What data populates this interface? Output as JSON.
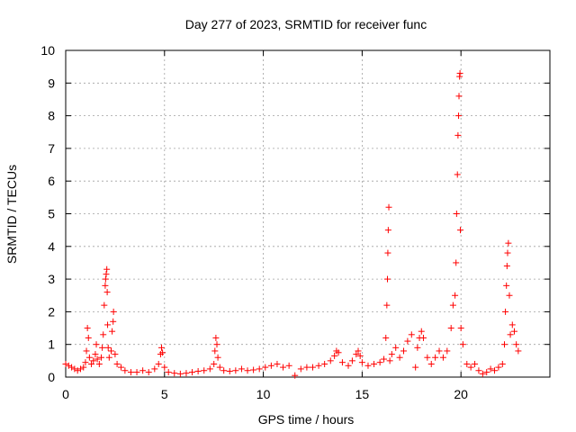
{
  "chart_data": {
    "type": "scatter",
    "title": "Day 277 of 2023, SRMTID for receiver func",
    "xlabel": "GPS time / hours",
    "ylabel": "SRMTID / TECUs",
    "xlim": [
      0,
      24.5
    ],
    "ylim": [
      0,
      10
    ],
    "xticks": [
      0,
      5,
      10,
      15,
      20
    ],
    "yticks": [
      0,
      1,
      2,
      3,
      4,
      5,
      6,
      7,
      8,
      9,
      10
    ],
    "grid": true,
    "marker": "+",
    "color": "#ff0000",
    "series": [
      {
        "name": "SRMTID",
        "points": [
          [
            0.0,
            0.4
          ],
          [
            0.15,
            0.35
          ],
          [
            0.3,
            0.3
          ],
          [
            0.45,
            0.25
          ],
          [
            0.6,
            0.2
          ],
          [
            0.75,
            0.25
          ],
          [
            0.9,
            0.3
          ],
          [
            1.0,
            0.45
          ],
          [
            1.05,
            0.8
          ],
          [
            1.1,
            1.5
          ],
          [
            1.15,
            1.2
          ],
          [
            1.2,
            0.6
          ],
          [
            1.3,
            0.4
          ],
          [
            1.4,
            0.5
          ],
          [
            1.5,
            0.7
          ],
          [
            1.55,
            1.0
          ],
          [
            1.6,
            0.55
          ],
          [
            1.7,
            0.4
          ],
          [
            1.8,
            0.6
          ],
          [
            1.85,
            0.9
          ],
          [
            1.9,
            1.3
          ],
          [
            1.95,
            2.2
          ],
          [
            2.0,
            2.8
          ],
          [
            2.02,
            3.0
          ],
          [
            2.05,
            3.15
          ],
          [
            2.08,
            3.3
          ],
          [
            2.1,
            2.6
          ],
          [
            2.12,
            1.6
          ],
          [
            2.15,
            0.9
          ],
          [
            2.2,
            0.6
          ],
          [
            2.3,
            0.8
          ],
          [
            2.35,
            1.4
          ],
          [
            2.4,
            1.7
          ],
          [
            2.42,
            2.0
          ],
          [
            2.5,
            0.7
          ],
          [
            2.6,
            0.4
          ],
          [
            2.8,
            0.3
          ],
          [
            3.0,
            0.2
          ],
          [
            3.3,
            0.15
          ],
          [
            3.6,
            0.15
          ],
          [
            3.9,
            0.2
          ],
          [
            4.2,
            0.15
          ],
          [
            4.5,
            0.25
          ],
          [
            4.7,
            0.4
          ],
          [
            4.8,
            0.7
          ],
          [
            4.85,
            0.9
          ],
          [
            4.9,
            0.75
          ],
          [
            5.0,
            0.3
          ],
          [
            5.2,
            0.15
          ],
          [
            5.5,
            0.12
          ],
          [
            5.8,
            0.1
          ],
          [
            6.1,
            0.12
          ],
          [
            6.4,
            0.15
          ],
          [
            6.7,
            0.18
          ],
          [
            7.0,
            0.2
          ],
          [
            7.3,
            0.25
          ],
          [
            7.5,
            0.4
          ],
          [
            7.55,
            0.8
          ],
          [
            7.6,
            1.2
          ],
          [
            7.65,
            1.0
          ],
          [
            7.7,
            0.6
          ],
          [
            7.8,
            0.3
          ],
          [
            8.0,
            0.2
          ],
          [
            8.3,
            0.18
          ],
          [
            8.6,
            0.2
          ],
          [
            8.9,
            0.25
          ],
          [
            9.2,
            0.2
          ],
          [
            9.5,
            0.22
          ],
          [
            9.8,
            0.25
          ],
          [
            10.1,
            0.3
          ],
          [
            10.4,
            0.35
          ],
          [
            10.7,
            0.4
          ],
          [
            11.0,
            0.3
          ],
          [
            11.3,
            0.35
          ],
          [
            11.6,
            0.05
          ],
          [
            11.9,
            0.25
          ],
          [
            12.2,
            0.3
          ],
          [
            12.5,
            0.3
          ],
          [
            12.8,
            0.35
          ],
          [
            13.1,
            0.4
          ],
          [
            13.4,
            0.5
          ],
          [
            13.6,
            0.65
          ],
          [
            13.7,
            0.8
          ],
          [
            13.8,
            0.75
          ],
          [
            14.0,
            0.45
          ],
          [
            14.3,
            0.35
          ],
          [
            14.5,
            0.5
          ],
          [
            14.7,
            0.7
          ],
          [
            14.8,
            0.8
          ],
          [
            14.9,
            0.65
          ],
          [
            15.0,
            0.45
          ],
          [
            15.3,
            0.35
          ],
          [
            15.6,
            0.4
          ],
          [
            15.9,
            0.45
          ],
          [
            16.1,
            0.55
          ],
          [
            16.2,
            1.2
          ],
          [
            16.25,
            2.2
          ],
          [
            16.28,
            3.0
          ],
          [
            16.3,
            3.8
          ],
          [
            16.32,
            4.5
          ],
          [
            16.35,
            5.2
          ],
          [
            16.4,
            0.5
          ],
          [
            16.5,
            0.7
          ],
          [
            16.7,
            0.9
          ],
          [
            16.9,
            0.6
          ],
          [
            17.1,
            0.8
          ],
          [
            17.3,
            1.1
          ],
          [
            17.5,
            1.3
          ],
          [
            17.7,
            0.3
          ],
          [
            17.8,
            0.9
          ],
          [
            17.9,
            1.2
          ],
          [
            18.0,
            1.4
          ],
          [
            18.1,
            1.2
          ],
          [
            18.3,
            0.6
          ],
          [
            18.5,
            0.4
          ],
          [
            18.7,
            0.6
          ],
          [
            18.9,
            0.8
          ],
          [
            19.1,
            0.6
          ],
          [
            19.3,
            0.8
          ],
          [
            19.5,
            1.5
          ],
          [
            19.6,
            2.2
          ],
          [
            19.7,
            2.5
          ],
          [
            19.75,
            3.5
          ],
          [
            19.78,
            5.0
          ],
          [
            19.82,
            6.2
          ],
          [
            19.85,
            7.4
          ],
          [
            19.88,
            8.0
          ],
          [
            19.9,
            8.6
          ],
          [
            19.93,
            9.2
          ],
          [
            19.95,
            9.3
          ],
          [
            19.97,
            4.5
          ],
          [
            20.0,
            1.5
          ],
          [
            20.1,
            1.0
          ],
          [
            20.3,
            0.4
          ],
          [
            20.5,
            0.3
          ],
          [
            20.7,
            0.4
          ],
          [
            20.9,
            0.2
          ],
          [
            21.1,
            0.1
          ],
          [
            21.3,
            0.15
          ],
          [
            21.5,
            0.25
          ],
          [
            21.7,
            0.2
          ],
          [
            21.9,
            0.3
          ],
          [
            22.1,
            0.4
          ],
          [
            22.2,
            1.0
          ],
          [
            22.25,
            2.0
          ],
          [
            22.3,
            2.8
          ],
          [
            22.33,
            3.4
          ],
          [
            22.36,
            3.8
          ],
          [
            22.4,
            4.1
          ],
          [
            22.45,
            2.5
          ],
          [
            22.5,
            1.3
          ],
          [
            22.6,
            1.6
          ],
          [
            22.7,
            1.4
          ],
          [
            22.8,
            1.0
          ],
          [
            22.9,
            0.8
          ]
        ]
      }
    ]
  }
}
